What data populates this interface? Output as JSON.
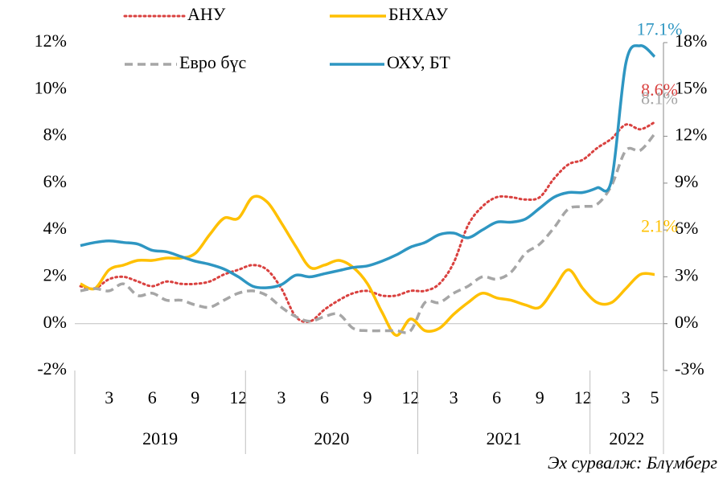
{
  "chart_data": {
    "type": "line",
    "categories": [
      null,
      null,
      "3",
      null,
      null,
      "6",
      null,
      null,
      "9",
      null,
      null,
      "12",
      null,
      null,
      "3",
      null,
      null,
      "6",
      null,
      null,
      "9",
      null,
      null,
      "12",
      null,
      null,
      "3",
      null,
      null,
      "6",
      null,
      null,
      "9",
      null,
      null,
      "12",
      null,
      null,
      "3",
      null,
      "5"
    ],
    "year_groups": [
      "2019",
      "2020",
      "2021",
      "2022"
    ],
    "series": [
      {
        "name": "АНУ",
        "color": "#d9413f",
        "style": "dotted",
        "values": [
          1.6,
          1.5,
          1.9,
          2.0,
          1.8,
          1.6,
          1.8,
          1.7,
          1.7,
          1.8,
          2.1,
          2.3,
          2.5,
          2.3,
          1.5,
          0.3,
          0.1,
          0.6,
          1.0,
          1.3,
          1.4,
          1.2,
          1.2,
          1.4,
          1.4,
          1.7,
          2.6,
          4.2,
          5.0,
          5.4,
          5.4,
          5.3,
          5.4,
          6.2,
          6.8,
          7.0,
          7.5,
          7.9,
          8.5,
          8.3,
          8.6
        ],
        "value_labels": [
          null,
          null,
          null,
          null,
          null,
          null,
          null,
          null,
          null,
          null,
          null,
          null,
          null,
          null,
          null,
          null,
          null,
          null,
          null,
          null,
          null,
          null,
          null,
          null,
          null,
          null,
          null,
          null,
          null,
          null,
          null,
          null,
          null,
          null,
          null,
          null,
          null,
          null,
          null,
          null,
          "8.6%"
        ]
      },
      {
        "name": "БНХАУ",
        "color": "#ffc000",
        "style": "solid",
        "values": [
          1.7,
          1.5,
          2.3,
          2.5,
          2.7,
          2.7,
          2.8,
          2.8,
          3.0,
          3.8,
          4.5,
          4.5,
          5.4,
          5.2,
          4.3,
          3.3,
          2.4,
          2.5,
          2.7,
          2.4,
          1.7,
          0.5,
          -0.5,
          0.2,
          -0.3,
          -0.2,
          0.4,
          0.9,
          1.3,
          1.1,
          1.0,
          0.8,
          0.7,
          1.5,
          2.3,
          1.5,
          0.9,
          0.9,
          1.5,
          2.1,
          2.1
        ],
        "value_labels": [
          null,
          null,
          null,
          null,
          null,
          null,
          null,
          null,
          null,
          null,
          null,
          null,
          null,
          null,
          null,
          null,
          null,
          null,
          null,
          null,
          null,
          null,
          null,
          null,
          null,
          null,
          null,
          null,
          null,
          null,
          null,
          null,
          null,
          null,
          null,
          null,
          null,
          null,
          null,
          null,
          "2.1%"
        ]
      },
      {
        "name": "Евро бүс",
        "color": "#a6a6a6",
        "style": "dashed",
        "values": [
          1.4,
          1.5,
          1.4,
          1.7,
          1.2,
          1.3,
          1.0,
          1.0,
          0.8,
          0.7,
          1.0,
          1.3,
          1.4,
          1.2,
          0.7,
          0.3,
          0.1,
          0.3,
          0.4,
          -0.2,
          -0.3,
          -0.3,
          -0.3,
          -0.3,
          0.9,
          0.9,
          1.3,
          1.6,
          2.0,
          1.9,
          2.2,
          3.0,
          3.4,
          4.1,
          4.9,
          5.0,
          5.1,
          5.9,
          7.4,
          7.4,
          8.1
        ],
        "value_labels": [
          null,
          null,
          null,
          null,
          null,
          null,
          null,
          null,
          null,
          null,
          null,
          null,
          null,
          null,
          null,
          null,
          null,
          null,
          null,
          null,
          null,
          null,
          null,
          null,
          null,
          null,
          null,
          null,
          null,
          null,
          null,
          null,
          null,
          null,
          null,
          null,
          null,
          null,
          null,
          null,
          "8.1%"
        ]
      },
      {
        "name": "ОХУ, БТ",
        "color": "#2e96c2",
        "style": "solid",
        "axis": "y2",
        "values": [
          5.0,
          5.2,
          5.3,
          5.2,
          5.1,
          4.7,
          4.6,
          4.3,
          4.0,
          3.8,
          3.5,
          3.0,
          2.4,
          2.3,
          2.5,
          3.1,
          3.0,
          3.2,
          3.4,
          3.6,
          3.7,
          4.0,
          4.4,
          4.9,
          5.2,
          5.7,
          5.8,
          5.5,
          6.0,
          6.5,
          6.5,
          6.7,
          7.4,
          8.1,
          8.4,
          8.4,
          8.7,
          9.2,
          16.7,
          17.8,
          17.1
        ],
        "value_labels": [
          null,
          null,
          null,
          null,
          null,
          null,
          null,
          null,
          null,
          null,
          null,
          null,
          null,
          null,
          null,
          null,
          null,
          null,
          null,
          null,
          null,
          null,
          null,
          null,
          null,
          null,
          null,
          null,
          null,
          null,
          null,
          null,
          null,
          null,
          null,
          null,
          null,
          null,
          null,
          null,
          "17.1%"
        ]
      }
    ],
    "ylim": [
      -2,
      12
    ],
    "yticks": [
      {
        "value": -2,
        "label": "-2%"
      },
      {
        "value": 0,
        "label": "0%"
      },
      {
        "value": 2,
        "label": "2%"
      },
      {
        "value": 4,
        "label": "4%"
      },
      {
        "value": 6,
        "label": "6%"
      },
      {
        "value": 8,
        "label": "8%"
      },
      {
        "value": 10,
        "label": "10%"
      },
      {
        "value": 12,
        "label": "12%"
      }
    ],
    "y2lim": [
      -3,
      18
    ],
    "y2ticks": [
      {
        "value": -3,
        "label": "-3%"
      },
      {
        "value": 0,
        "label": "0%"
      },
      {
        "value": 3,
        "label": "3%"
      },
      {
        "value": 6,
        "label": "6%"
      },
      {
        "value": 9,
        "label": "9%"
      },
      {
        "value": 12,
        "label": "12%"
      },
      {
        "value": 15,
        "label": "15%"
      },
      {
        "value": 18,
        "label": "18%"
      }
    ],
    "legend": "top",
    "source": "Эх сурвалж: Блүмберг"
  }
}
